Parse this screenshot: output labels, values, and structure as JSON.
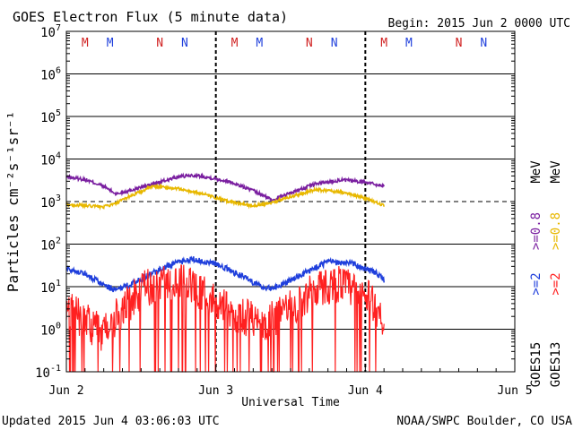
{
  "chart_data": {
    "type": "line",
    "title": "GOES Electron Flux (5 minute data)",
    "begin_label": "Begin: 2015 Jun 2 0000 UTC",
    "xlabel": "Universal Time",
    "ylabel": "Particles cm⁻²s⁻¹sr⁻¹",
    "y_scale": "log",
    "ylim": [
      0.1,
      10000000
    ],
    "xlim": [
      "2015-06-02T00:00Z",
      "2015-06-05T00:00Z"
    ],
    "x_ticks": [
      "Jun 2",
      "Jun 3",
      "Jun 4",
      "Jun 5"
    ],
    "y_ticks": [
      {
        "base": "10",
        "exp": "-1",
        "value": 0.1
      },
      {
        "base": "10",
        "exp": "0",
        "value": 1
      },
      {
        "base": "10",
        "exp": "1",
        "value": 10
      },
      {
        "base": "10",
        "exp": "2",
        "value": 100
      },
      {
        "base": "10",
        "exp": "3",
        "value": 1000
      },
      {
        "base": "10",
        "exp": "4",
        "value": 10000
      },
      {
        "base": "10",
        "exp": "5",
        "value": 100000
      },
      {
        "base": "10",
        "exp": "6",
        "value": 1000000
      },
      {
        "base": "10",
        "exp": "7",
        "value": 10000000
      }
    ],
    "threshold": {
      "value": 1000,
      "style": "dashed"
    },
    "grid": "horizontal",
    "legend_position": "right",
    "right_labels": [
      {
        "text": "GOES15",
        "color": "#000000"
      },
      {
        "text": "GOES13",
        "color": "#000000"
      },
      {
        "text": ">=2",
        "color": "#1f3fdc"
      },
      {
        "text": ">=2",
        "color": "#ff2020"
      },
      {
        "text": ">=0.8",
        "color": "#7a1fa0"
      },
      {
        "text": ">=0.8",
        "color": "#e8b800"
      },
      {
        "text": "MeV",
        "color": "#000000"
      },
      {
        "text": "MeV",
        "color": "#000000"
      }
    ],
    "markers": [
      {
        "label": "M",
        "t": "2015-06-02T03:00Z",
        "color": "#d02020"
      },
      {
        "label": "M",
        "t": "2015-06-02T07:00Z",
        "color": "#1f3fdc"
      },
      {
        "label": "N",
        "t": "2015-06-02T15:00Z",
        "color": "#d02020"
      },
      {
        "label": "N",
        "t": "2015-06-02T19:00Z",
        "color": "#1f3fdc"
      },
      {
        "label": "M",
        "t": "2015-06-03T03:00Z",
        "color": "#d02020"
      },
      {
        "label": "M",
        "t": "2015-06-03T07:00Z",
        "color": "#1f3fdc"
      },
      {
        "label": "N",
        "t": "2015-06-03T15:00Z",
        "color": "#d02020"
      },
      {
        "label": "N",
        "t": "2015-06-03T19:00Z",
        "color": "#1f3fdc"
      },
      {
        "label": "M",
        "t": "2015-06-04T03:00Z",
        "color": "#d02020"
      },
      {
        "label": "M",
        "t": "2015-06-04T07:00Z",
        "color": "#1f3fdc"
      },
      {
        "label": "N",
        "t": "2015-06-04T15:00Z",
        "color": "#d02020"
      },
      {
        "label": "N",
        "t": "2015-06-04T19:00Z",
        "color": "#1f3fdc"
      }
    ],
    "day_boundaries": [
      "2015-06-03T00:00Z",
      "2015-06-04T00:00Z"
    ],
    "series": [
      {
        "color": "#7a1fa0",
        "x": [
          "2015-06-02T00:00Z",
          "2015-06-02T03:00Z",
          "2015-06-02T06:00Z",
          "2015-06-02T08:00Z",
          "2015-06-02T10:00Z",
          "2015-06-02T14:00Z",
          "2015-06-02T18:00Z",
          "2015-06-02T20:00Z",
          "2015-06-02T22:00Z",
          "2015-06-03T02:00Z",
          "2015-06-03T06:00Z",
          "2015-06-03T09:00Z",
          "2015-06-03T12:00Z",
          "2015-06-03T16:00Z",
          "2015-06-03T20:00Z",
          "2015-06-04T00:00Z",
          "2015-06-04T03:00Z"
        ],
        "values": [
          3800,
          3300,
          2300,
          1500,
          1800,
          2600,
          3800,
          4100,
          3900,
          3000,
          1800,
          1100,
          1600,
          2600,
          3200,
          2900,
          2300
        ]
      },
      {
        "color": "#e8b800",
        "x": [
          "2015-06-02T00:00Z",
          "2015-06-02T03:00Z",
          "2015-06-02T06:00Z",
          "2015-06-02T08:00Z",
          "2015-06-02T10:00Z",
          "2015-06-02T14:00Z",
          "2015-06-02T18:00Z",
          "2015-06-02T22:00Z",
          "2015-06-03T02:00Z",
          "2015-06-03T06:00Z",
          "2015-06-03T09:00Z",
          "2015-06-03T12:00Z",
          "2015-06-03T16:00Z",
          "2015-06-03T20:00Z",
          "2015-06-04T00:00Z",
          "2015-06-04T03:00Z"
        ],
        "values": [
          850,
          800,
          750,
          900,
          1300,
          2300,
          2000,
          1500,
          1000,
          800,
          950,
          1300,
          1900,
          1700,
          1200,
          800
        ]
      },
      {
        "color": "#1f3fdc",
        "x": [
          "2015-06-02T00:00Z",
          "2015-06-02T03:00Z",
          "2015-06-02T06:00Z",
          "2015-06-02T08:00Z",
          "2015-06-02T12:00Z",
          "2015-06-02T16:00Z",
          "2015-06-02T20:00Z",
          "2015-06-03T00:00Z",
          "2015-06-03T04:00Z",
          "2015-06-03T08:00Z",
          "2015-06-03T10:00Z",
          "2015-06-03T14:00Z",
          "2015-06-03T18:00Z",
          "2015-06-03T22:00Z",
          "2015-06-04T02:00Z",
          "2015-06-04T03:00Z"
        ],
        "values": [
          28,
          20,
          11,
          8,
          15,
          30,
          45,
          35,
          18,
          9,
          10,
          20,
          38,
          35,
          20,
          14
        ]
      },
      {
        "color": "#ff2020",
        "x": [
          "2015-06-02T00:00Z",
          "2015-06-02T03:00Z",
          "2015-06-02T06:00Z",
          "2015-06-02T08:00Z",
          "2015-06-02T12:00Z",
          "2015-06-02T16:00Z",
          "2015-06-02T20:00Z",
          "2015-06-03T00:00Z",
          "2015-06-03T04:00Z",
          "2015-06-03T08:00Z",
          "2015-06-03T12:00Z",
          "2015-06-03T16:00Z",
          "2015-06-03T20:00Z",
          "2015-06-04T00:00Z",
          "2015-06-04T02:00Z",
          "2015-06-04T03:00Z"
        ],
        "values": [
          3,
          1.5,
          0.8,
          2,
          8,
          14,
          12,
          4,
          2,
          1.5,
          3,
          9,
          12,
          6,
          3,
          1.5
        ]
      }
    ]
  },
  "footer": {
    "updated": "Updated 2015 Jun  4 03:06:03 UTC",
    "source": "NOAA/SWPC Boulder, CO USA"
  }
}
